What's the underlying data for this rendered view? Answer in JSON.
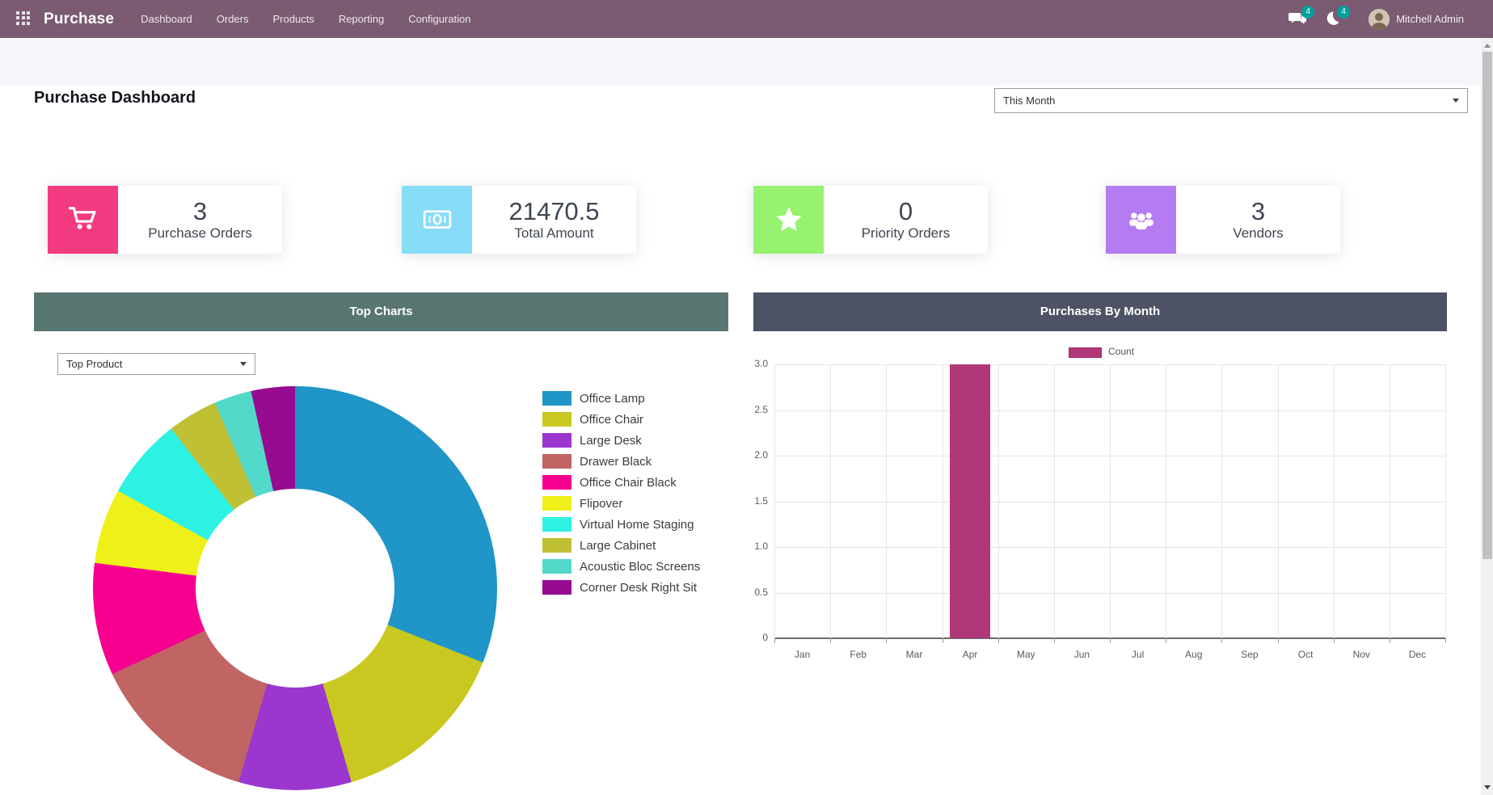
{
  "navbar": {
    "bg_color": "#7a5b71",
    "badge_color": "#00a09d",
    "brand": "Purchase",
    "items": [
      "Dashboard",
      "Orders",
      "Products",
      "Reporting",
      "Configuration"
    ],
    "messages_badge": "4",
    "activities_badge": "4",
    "user_name": "Mitchell Admin"
  },
  "header": {
    "title": "Purchase Dashboard",
    "period": "This Month"
  },
  "kpis": [
    {
      "icon": "shopping-cart-icon",
      "color": "#f23b80",
      "value": "3",
      "label": "Purchase Orders"
    },
    {
      "icon": "money-bill-icon",
      "color": "#87dcf7",
      "value": "21470.5",
      "label": "Total Amount"
    },
    {
      "icon": "star-icon",
      "color": "#97f26f",
      "value": "0",
      "label": "Priority Orders"
    },
    {
      "icon": "users-icon",
      "color": "#b57cf2",
      "value": "3",
      "label": "Vendors"
    }
  ],
  "panels": {
    "top_charts": {
      "title": "Top Charts",
      "header_color": "#587671",
      "selector_value": "Top Product"
    },
    "purchases_by_month": {
      "title": "Purchases By Month",
      "header_color": "#4d5365"
    }
  },
  "chart_data": [
    {
      "type": "pie",
      "title": "Top Product",
      "donut": true,
      "legend_position": "right",
      "labels": [
        "Office Lamp",
        "Office Chair",
        "Large Desk",
        "Drawer Black",
        "Office Chair Black",
        "Flipover",
        "Virtual Home Staging",
        "Large Cabinet",
        "Acoustic Bloc Screens",
        "Corner Desk Right Sit"
      ],
      "values_percent": [
        31,
        14.5,
        9,
        13.5,
        9,
        6,
        6.5,
        4,
        3,
        3.5
      ],
      "colors": [
        "#1f95c8",
        "#c8c821",
        "#9b36cf",
        "#c06464",
        "#f70090",
        "#eff01a",
        "#2df2e3",
        "#c0c035",
        "#53d9c9",
        "#970b90"
      ]
    },
    {
      "type": "bar",
      "title": "Purchases By Month",
      "legend_position": "top",
      "grid": true,
      "categories": [
        "Jan",
        "Feb",
        "Mar",
        "Apr",
        "May",
        "Jun",
        "Jul",
        "Aug",
        "Sep",
        "Oct",
        "Nov",
        "Dec"
      ],
      "series": [
        {
          "name": "Count",
          "color": "#b13878",
          "values": [
            0,
            0,
            0,
            3,
            0,
            0,
            0,
            0,
            0,
            0,
            0,
            0
          ]
        }
      ],
      "xlabel": "",
      "ylabel": "",
      "ylim": [
        0,
        3
      ],
      "yticks": [
        0,
        0.5,
        1,
        1.5,
        2,
        2.5,
        3
      ]
    }
  ]
}
